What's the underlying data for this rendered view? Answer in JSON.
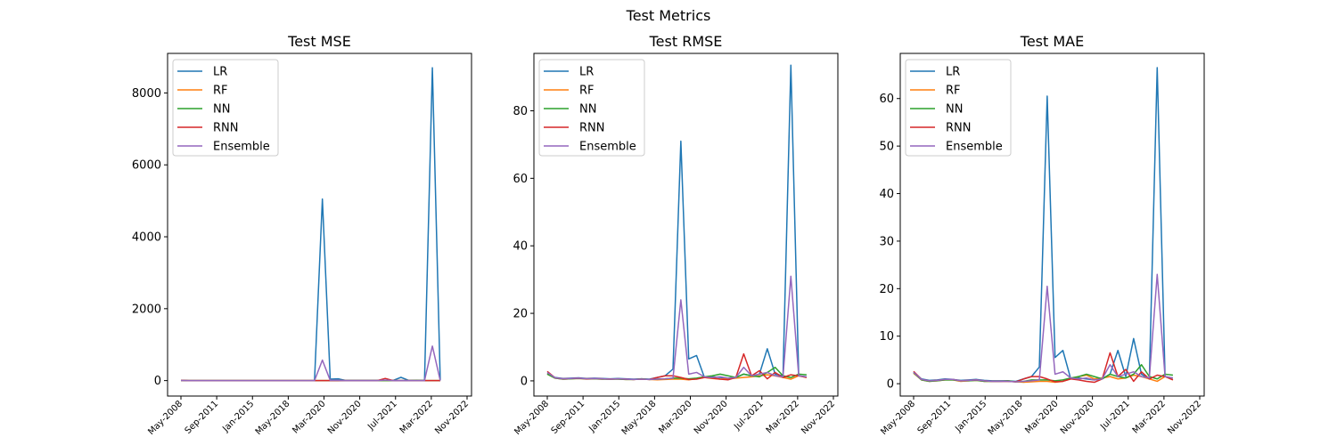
{
  "figure": {
    "title": "Test Metrics",
    "background": "#ffffff"
  },
  "legend": {
    "placement": "upper-left"
  },
  "chart_data": [
    {
      "type": "line",
      "title": "Test MSE",
      "xlabel": "",
      "ylabel": "",
      "x_ticks": [
        "May-2008",
        "Sep-2011",
        "Jan-2015",
        "May-2018",
        "Mar-2020",
        "Nov-2020",
        "Jul-2021",
        "Mar-2022",
        "Nov-2022"
      ],
      "y_ticks": [
        0,
        2000,
        4000,
        6000,
        8000
      ],
      "ylim": [
        -430,
        9100
      ],
      "grid": false,
      "series": [
        {
          "name": "LR",
          "color": "#1f77b4",
          "values": [
            5,
            1,
            1,
            1,
            1,
            1,
            1,
            1,
            1,
            1,
            1,
            1,
            1,
            1,
            1,
            1,
            1,
            1,
            5050,
            40,
            50,
            5,
            5,
            5,
            5,
            5,
            10,
            5,
            90,
            5,
            5,
            5,
            8700,
            5
          ]
        },
        {
          "name": "RF",
          "color": "#ff7f0e",
          "values": [
            3,
            1,
            1,
            1,
            1,
            1,
            1,
            1,
            1,
            1,
            1,
            1,
            1,
            1,
            1,
            1,
            1,
            1,
            1,
            1,
            1,
            1,
            1,
            1,
            1,
            1,
            1,
            1,
            1,
            1,
            1,
            1,
            1,
            1
          ]
        },
        {
          "name": "NN",
          "color": "#2ca02c",
          "values": [
            3,
            1,
            1,
            1,
            1,
            1,
            1,
            1,
            1,
            1,
            1,
            1,
            1,
            1,
            1,
            1,
            1,
            1,
            1,
            1,
            1,
            1,
            1,
            1,
            1,
            1,
            1,
            1,
            1,
            1,
            10,
            1,
            1,
            1
          ]
        },
        {
          "name": "RNN",
          "color": "#d62728",
          "values": [
            5,
            1,
            1,
            1,
            1,
            1,
            1,
            1,
            1,
            1,
            1,
            1,
            1,
            1,
            1,
            1,
            1,
            1,
            1,
            1,
            1,
            1,
            1,
            1,
            1,
            1,
            60,
            1,
            1,
            1,
            1,
            1,
            1,
            1
          ]
        },
        {
          "name": "Ensemble",
          "color": "#9467bd",
          "values": [
            3,
            1,
            1,
            1,
            1,
            1,
            1,
            1,
            1,
            1,
            1,
            1,
            1,
            1,
            1,
            1,
            1,
            1,
            570,
            5,
            5,
            1,
            1,
            1,
            1,
            1,
            15,
            1,
            1,
            1,
            1,
            1,
            960,
            1
          ]
        }
      ]
    },
    {
      "type": "line",
      "title": "Test RMSE",
      "xlabel": "",
      "ylabel": "",
      "x_ticks": [
        "May-2008",
        "Sep-2011",
        "Jan-2015",
        "May-2018",
        "Mar-2020",
        "Nov-2020",
        "Jul-2021",
        "Mar-2022",
        "Nov-2022"
      ],
      "y_ticks": [
        0,
        20,
        40,
        60,
        80
      ],
      "ylim": [
        -4.5,
        97
      ],
      "grid": false,
      "series": [
        {
          "name": "LR",
          "color": "#1f77b4",
          "values": [
            2.2,
            1.0,
            0.7,
            0.8,
            0.9,
            0.7,
            0.8,
            0.7,
            0.6,
            0.7,
            0.6,
            0.5,
            0.6,
            0.5,
            1.0,
            1.5,
            3.5,
            71,
            6.5,
            7.5,
            1.0,
            1.2,
            1.0,
            0.8,
            1.0,
            2.0,
            1.5,
            2.0,
            9.5,
            2.0,
            1.5,
            93.5,
            1.5,
            1.2
          ]
        },
        {
          "name": "RF",
          "color": "#ff7f0e",
          "values": [
            2.0,
            0.8,
            0.5,
            0.6,
            0.7,
            0.5,
            0.6,
            0.5,
            0.5,
            0.5,
            0.4,
            0.4,
            0.5,
            0.4,
            0.3,
            0.4,
            0.5,
            0.5,
            0.3,
            0.6,
            1.0,
            0.7,
            0.5,
            0.6,
            0.8,
            1.0,
            1.2,
            1.5,
            1.8,
            1.5,
            1.0,
            0.5,
            1.5,
            1.0
          ]
        },
        {
          "name": "NN",
          "color": "#2ca02c",
          "values": [
            2.0,
            0.8,
            0.5,
            0.6,
            0.7,
            0.6,
            0.6,
            0.5,
            0.5,
            0.5,
            0.4,
            0.4,
            0.6,
            0.4,
            0.5,
            0.6,
            0.8,
            0.8,
            0.6,
            0.8,
            1.2,
            1.5,
            2.0,
            1.5,
            1.0,
            2.0,
            1.5,
            1.2,
            2.5,
            4.0,
            1.5,
            1.0,
            2.0,
            1.8
          ]
        },
        {
          "name": "RNN",
          "color": "#d62728",
          "values": [
            2.8,
            0.9,
            0.6,
            0.7,
            0.8,
            0.6,
            0.7,
            0.6,
            0.5,
            0.6,
            0.5,
            0.4,
            0.5,
            0.4,
            1.0,
            1.5,
            1.5,
            1.0,
            0.4,
            0.5,
            1.0,
            0.8,
            0.5,
            0.3,
            1.0,
            8.0,
            1.5,
            3.0,
            0.6,
            2.5,
            1.0,
            1.8,
            1.5,
            1.0
          ]
        },
        {
          "name": "Ensemble",
          "color": "#9467bd",
          "values": [
            2.5,
            0.9,
            0.6,
            0.7,
            0.8,
            0.6,
            0.7,
            0.6,
            0.5,
            0.6,
            0.5,
            0.4,
            0.5,
            0.4,
            0.5,
            0.6,
            0.8,
            24,
            2.0,
            2.5,
            1.2,
            1.0,
            1.2,
            0.8,
            1.0,
            4.0,
            1.5,
            2.0,
            2.5,
            1.5,
            1.2,
            31,
            1.5,
            1.2
          ]
        }
      ]
    },
    {
      "type": "line",
      "title": "Test MAE",
      "xlabel": "",
      "ylabel": "",
      "x_ticks": [
        "May-2008",
        "Sep-2011",
        "Jan-2015",
        "May-2018",
        "Mar-2020",
        "Nov-2020",
        "Jul-2021",
        "Mar-2022",
        "Nov-2022"
      ],
      "y_ticks": [
        0,
        10,
        20,
        30,
        40,
        50,
        60
      ],
      "ylim": [
        -2.6,
        69.5
      ],
      "grid": false,
      "series": [
        {
          "name": "LR",
          "color": "#1f77b4",
          "values": [
            2.5,
            1.0,
            0.7,
            0.8,
            1.0,
            0.9,
            0.7,
            0.8,
            0.9,
            0.7,
            0.6,
            0.6,
            0.6,
            0.5,
            1.0,
            1.5,
            3.5,
            60.5,
            5.5,
            7.0,
            1.0,
            1.2,
            1.0,
            0.8,
            1.0,
            2.0,
            7.0,
            1.5,
            9.5,
            2.0,
            1.0,
            66.5,
            1.5,
            1.2
          ]
        },
        {
          "name": "RF",
          "color": "#ff7f0e",
          "values": [
            2.2,
            0.8,
            0.5,
            0.6,
            0.8,
            0.8,
            0.5,
            0.6,
            0.7,
            0.5,
            0.5,
            0.5,
            0.5,
            0.4,
            0.3,
            0.4,
            0.5,
            0.5,
            0.3,
            0.5,
            1.0,
            1.5,
            1.8,
            1.0,
            1.2,
            1.5,
            1.0,
            1.2,
            1.8,
            1.5,
            1.0,
            0.5,
            1.5,
            0.8
          ]
        },
        {
          "name": "NN",
          "color": "#2ca02c",
          "values": [
            2.3,
            0.8,
            0.5,
            0.6,
            0.8,
            0.8,
            0.6,
            0.6,
            0.7,
            0.5,
            0.5,
            0.5,
            0.6,
            0.4,
            0.5,
            0.8,
            0.8,
            0.8,
            0.6,
            0.8,
            1.2,
            1.5,
            2.0,
            1.5,
            1.0,
            2.0,
            1.5,
            1.2,
            2.0,
            4.0,
            1.5,
            1.0,
            2.0,
            1.8
          ]
        },
        {
          "name": "RNN",
          "color": "#d62728",
          "values": [
            2.6,
            0.9,
            0.6,
            0.7,
            0.9,
            0.9,
            0.6,
            0.7,
            0.8,
            0.6,
            0.5,
            0.5,
            0.5,
            0.4,
            1.0,
            1.5,
            1.5,
            1.0,
            0.4,
            0.5,
            1.0,
            0.8,
            0.5,
            0.3,
            1.0,
            6.5,
            1.5,
            3.0,
            0.5,
            2.5,
            1.0,
            1.8,
            1.5,
            0.8
          ]
        },
        {
          "name": "Ensemble",
          "color": "#9467bd",
          "values": [
            2.4,
            0.9,
            0.6,
            0.7,
            0.9,
            0.9,
            0.6,
            0.7,
            0.8,
            0.6,
            0.5,
            0.5,
            0.5,
            0.4,
            0.5,
            0.6,
            0.8,
            20.5,
            2.0,
            2.5,
            1.2,
            1.0,
            1.2,
            0.8,
            1.0,
            4.0,
            1.5,
            2.0,
            2.5,
            1.5,
            1.2,
            23,
            1.5,
            1.2
          ]
        }
      ]
    }
  ]
}
